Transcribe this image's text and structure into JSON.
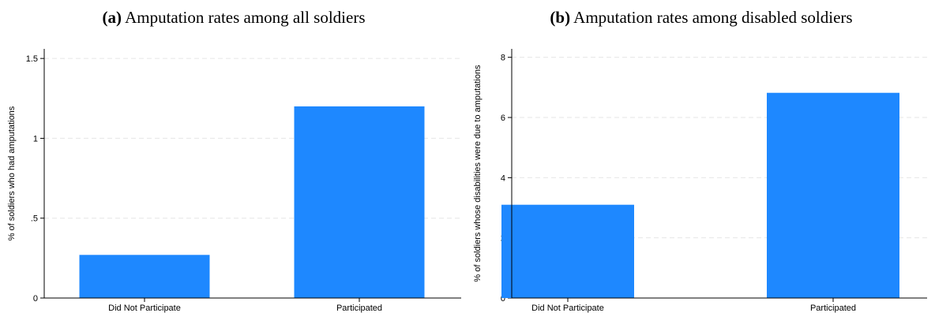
{
  "figure": {
    "panels": [
      {
        "label": "(a)",
        "title": "Amputation rates among all soldiers"
      },
      {
        "label": "(b)",
        "title": "Amputation rates among disabled soldiers"
      }
    ]
  },
  "chart_data": [
    {
      "type": "bar",
      "title": "Amputation rates among all soldiers",
      "categories": [
        "Did Not Participate",
        "Participated"
      ],
      "values": [
        0.27,
        1.2
      ],
      "xlabel": "",
      "ylabel": "% of soldiers who had amputations",
      "ylim": [
        0,
        1.56
      ],
      "yticks": [
        0,
        0.5,
        1,
        1.5
      ],
      "ytick_labels": [
        "0",
        ".5",
        "1",
        "1.5"
      ],
      "grid": true,
      "bar_color": "#1E88FF"
    },
    {
      "type": "bar",
      "title": "Amputation rates among disabled soldiers",
      "categories": [
        "Did Not Participate",
        "Participated"
      ],
      "values": [
        3.1,
        6.82
      ],
      "xlabel": "",
      "ylabel": "% of soldiers whose disabilities were due to amputations",
      "ylim": [
        0,
        8.28
      ],
      "yticks": [
        0,
        2,
        4,
        6,
        8
      ],
      "ytick_labels": [
        "0",
        "2",
        "4",
        "6",
        "8"
      ],
      "grid": true,
      "bar_color": "#1E88FF"
    }
  ]
}
